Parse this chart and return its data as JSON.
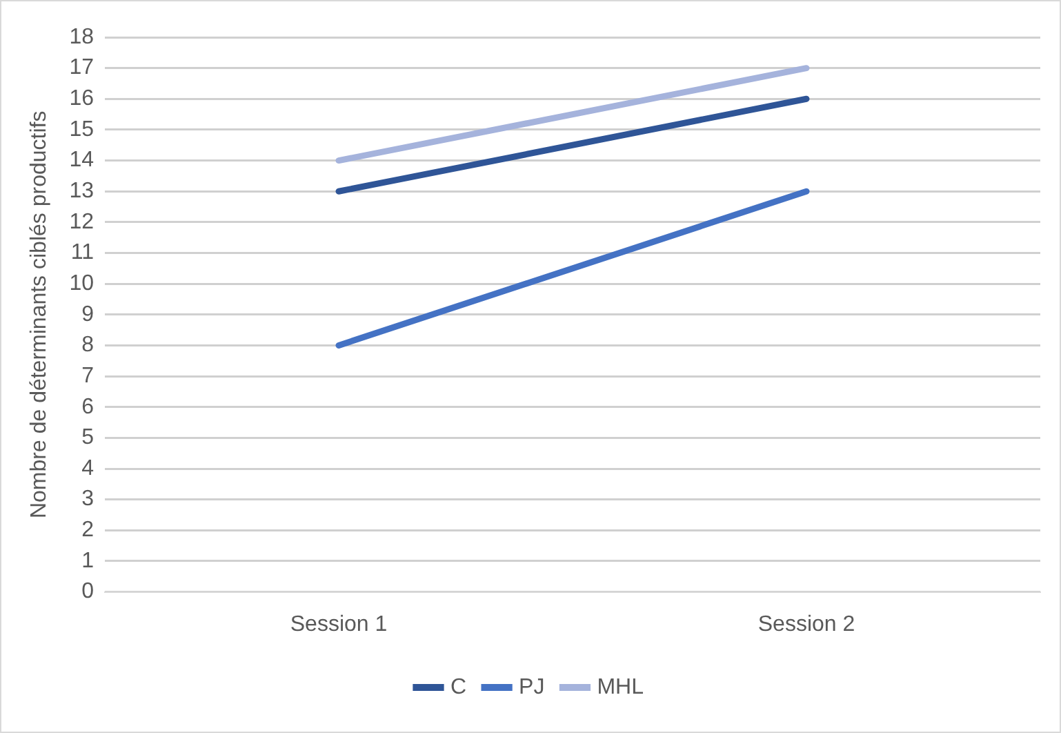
{
  "chart_data": {
    "type": "line",
    "ylabel": "Nombre de déterminants ciblés productifs",
    "categories": [
      "Session 1",
      "Session 2"
    ],
    "series": [
      {
        "name": "C",
        "color": "#2f5597",
        "values": [
          13,
          16
        ]
      },
      {
        "name": "PJ",
        "color": "#4472c4",
        "values": [
          8,
          13
        ]
      },
      {
        "name": "MHL",
        "color": "#a5b3dc",
        "values": [
          14,
          17
        ]
      }
    ],
    "ylim": [
      0,
      18
    ],
    "yticks": [
      0,
      1,
      2,
      3,
      4,
      5,
      6,
      7,
      8,
      9,
      10,
      11,
      12,
      13,
      14,
      15,
      16,
      17,
      18
    ],
    "grid": "y",
    "legend": "bottom",
    "marker": "none",
    "line_style": "solid"
  }
}
